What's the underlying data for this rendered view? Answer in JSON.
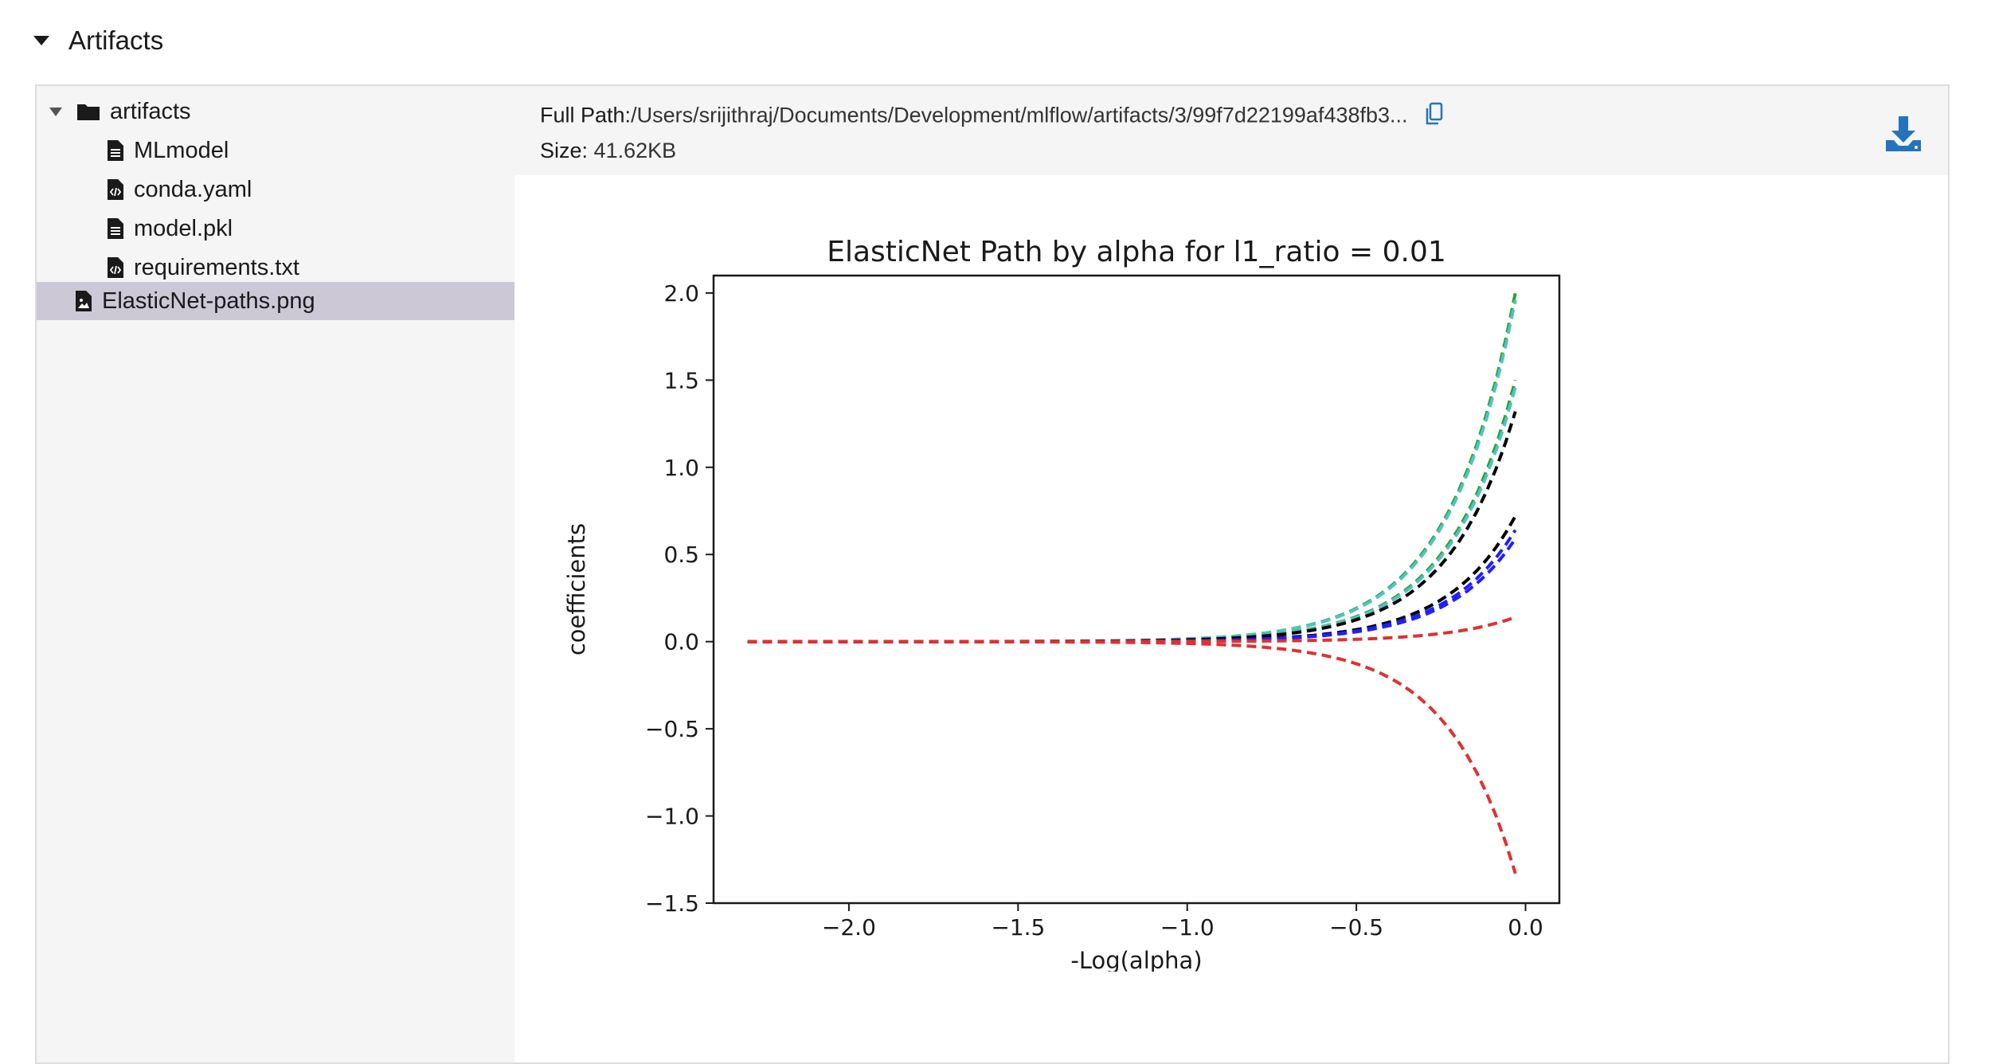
{
  "section": {
    "title": "Artifacts"
  },
  "tree": {
    "root": {
      "label": "artifacts"
    },
    "files": [
      {
        "label": "MLmodel",
        "icon": "file-icon"
      },
      {
        "label": "conda.yaml",
        "icon": "code-file-icon"
      },
      {
        "label": "model.pkl",
        "icon": "file-icon"
      },
      {
        "label": "requirements.txt",
        "icon": "code-file-icon"
      }
    ],
    "selected": {
      "label": "ElasticNet-paths.png",
      "icon": "image-file-icon"
    }
  },
  "meta": {
    "path_label": "Full Path:",
    "path_value": "/Users/srijithraj/Documents/Development/mlflow/artifacts/3/99f7d22199af438fb3...",
    "size_label": "Size:",
    "size_value": "41.62KB"
  },
  "colors": {
    "accent": "#2374bb",
    "selected_row": "#ccc8d6"
  },
  "chart_data": {
    "type": "line",
    "title": "ElasticNet Path by alpha for l1_ratio = 0.01",
    "xlabel": "-Log(alpha)",
    "ylabel": "coefficients",
    "xlim": [
      -2.4,
      0.1
    ],
    "ylim": [
      -1.5,
      2.1
    ],
    "xticks": [
      -2.0,
      -1.5,
      -1.0,
      -0.5,
      0.0
    ],
    "xtick_labels": [
      "−2.0",
      "−1.5",
      "−1.0",
      "−0.5",
      "0.0"
    ],
    "yticks": [
      2.0,
      1.5,
      1.0,
      0.5,
      0.0,
      -0.5,
      -1.0,
      -1.5
    ],
    "ytick_labels": [
      "2.0",
      "1.5",
      "1.0",
      "0.5",
      "0.0",
      "−0.5",
      "−1.0",
      "−1.5"
    ],
    "grid": false,
    "x_start": -2.3,
    "x_end": -0.03,
    "series": [
      {
        "color": "#2ca02c",
        "end_value": 2.0
      },
      {
        "color": "#4fc3c3",
        "end_value": 1.96
      },
      {
        "color": "#2ca02c",
        "end_value": 1.5
      },
      {
        "color": "#4fc3c3",
        "end_value": 1.46
      },
      {
        "color": "#000000",
        "end_value": 1.32
      },
      {
        "color": "#000000",
        "end_value": 0.72
      },
      {
        "color": "#1f1fff",
        "end_value": 0.64
      },
      {
        "color": "#1f1fff",
        "end_value": 0.59
      },
      {
        "color": "#e03030",
        "end_value": 0.14
      },
      {
        "color": "#e03030",
        "end_value": -1.33
      }
    ]
  }
}
